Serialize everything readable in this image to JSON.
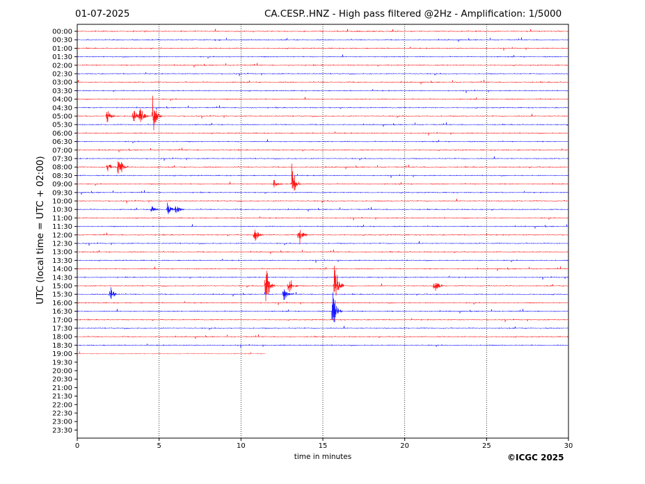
{
  "header": {
    "date": "01-07-2025",
    "title": "CA.CESP..HNZ - High pass filtered @2Hz - Amplification: 1/5000"
  },
  "footer": {
    "copyright": "©ICGC 2025"
  },
  "chart_data": {
    "type": "line",
    "xlabel": "time in minutes",
    "ylabel": "UTC (local time = UTC + 02:00)",
    "xlim": [
      0,
      30
    ],
    "x_ticks": [
      0,
      5,
      10,
      15,
      20,
      25,
      30
    ],
    "grid": "vertical dotted at x ticks",
    "row_labels": [
      "00:00",
      "00:30",
      "01:00",
      "01:30",
      "02:00",
      "02:30",
      "03:00",
      "03:30",
      "04:00",
      "04:30",
      "05:00",
      "05:30",
      "06:00",
      "06:30",
      "07:00",
      "07:30",
      "08:00",
      "08:30",
      "09:00",
      "09:30",
      "10:00",
      "10:30",
      "11:00",
      "11:30",
      "12:00",
      "12:30",
      "13:00",
      "13:30",
      "14:00",
      "14:30",
      "15:00",
      "15:30",
      "16:00",
      "16:30",
      "17:00",
      "17:30",
      "18:00",
      "18:30",
      "19:00",
      "19:30",
      "20:00",
      "20:30",
      "21:00",
      "21:30",
      "22:00",
      "22:30",
      "23:00",
      "23:30"
    ],
    "colors": {
      "even_rows": "#ff0000",
      "odd_rows": "#0000ff"
    },
    "trace_end": {
      "row": "19:00",
      "minute": 11.5
    },
    "events": [
      {
        "row": "05:00",
        "minute": 1.8,
        "amp": 0.5
      },
      {
        "row": "05:00",
        "minute": 3.4,
        "amp": 0.6
      },
      {
        "row": "05:00",
        "minute": 3.8,
        "amp": 0.8
      },
      {
        "row": "05:00",
        "minute": 4.6,
        "amp": 1.3
      },
      {
        "row": "08:00",
        "minute": 1.8,
        "amp": 0.4
      },
      {
        "row": "08:00",
        "minute": 2.5,
        "amp": 1.1
      },
      {
        "row": "09:00",
        "minute": 12.0,
        "amp": 0.3
      },
      {
        "row": "09:00",
        "minute": 13.1,
        "amp": 1.5
      },
      {
        "row": "10:30",
        "minute": 4.5,
        "amp": 0.3
      },
      {
        "row": "10:30",
        "minute": 5.5,
        "amp": 0.4
      },
      {
        "row": "10:30",
        "minute": 6.0,
        "amp": 0.4
      },
      {
        "row": "12:00",
        "minute": 10.8,
        "amp": 0.6
      },
      {
        "row": "12:00",
        "minute": 13.5,
        "amp": 1.0
      },
      {
        "row": "15:00",
        "minute": 11.5,
        "amp": 1.6
      },
      {
        "row": "15:00",
        "minute": 12.9,
        "amp": 0.8
      },
      {
        "row": "15:00",
        "minute": 15.7,
        "amp": 1.8
      },
      {
        "row": "15:00",
        "minute": 21.8,
        "amp": 0.6
      },
      {
        "row": "15:30",
        "minute": 2.0,
        "amp": 0.8
      },
      {
        "row": "15:30",
        "minute": 12.6,
        "amp": 0.5
      },
      {
        "row": "16:30",
        "minute": 15.6,
        "amp": 1.8
      }
    ]
  }
}
